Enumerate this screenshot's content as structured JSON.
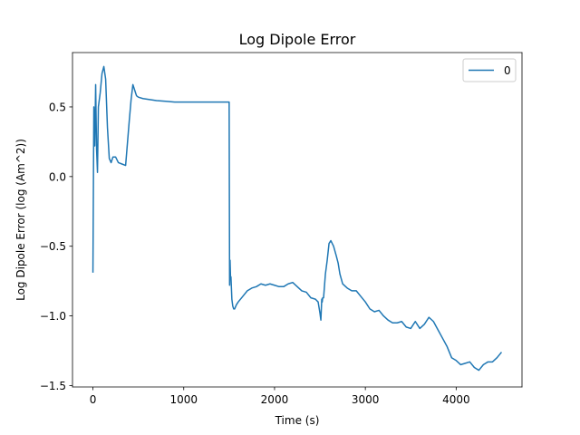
{
  "chart_data": {
    "type": "line",
    "title": "Log Dipole Error",
    "xlabel": "Time (s)",
    "ylabel": "Log Dipole Error (log (Am^2))",
    "xlim": [
      -225,
      4725
    ],
    "ylim": [
      -1.51,
      0.89
    ],
    "xticks": [
      0,
      1000,
      2000,
      3000,
      4000
    ],
    "xtick_labels": [
      "0",
      "1000",
      "2000",
      "3000",
      "4000"
    ],
    "yticks": [
      -1.5,
      -1.0,
      -0.5,
      0.0,
      0.5
    ],
    "ytick_labels": [
      "−1.5",
      "−1.0",
      "−0.5",
      "0.0",
      "0.5"
    ],
    "grid": false,
    "legend_position": "top-right",
    "series": [
      {
        "name": "0",
        "color": "#1f77b4",
        "x": [
          0,
          10,
          20,
          30,
          40,
          50,
          60,
          70,
          80,
          100,
          120,
          140,
          160,
          180,
          200,
          220,
          250,
          280,
          320,
          360,
          400,
          420,
          440,
          460,
          470,
          480,
          500,
          550,
          600,
          700,
          800,
          900,
          1000,
          1100,
          1200,
          1300,
          1400,
          1480,
          1500,
          1505,
          1510,
          1515,
          1520,
          1530,
          1540,
          1550,
          1560,
          1580,
          1600,
          1650,
          1700,
          1750,
          1800,
          1850,
          1900,
          1950,
          2000,
          2050,
          2100,
          2150,
          2200,
          2250,
          2300,
          2350,
          2400,
          2450,
          2480,
          2500,
          2510,
          2520,
          2525,
          2530,
          2540,
          2560,
          2580,
          2600,
          2620,
          2650,
          2680,
          2700,
          2720,
          2750,
          2800,
          2850,
          2900,
          2950,
          3000,
          3050,
          3100,
          3150,
          3200,
          3250,
          3300,
          3350,
          3400,
          3450,
          3500,
          3550,
          3600,
          3650,
          3700,
          3750,
          3800,
          3850,
          3900,
          3950,
          4000,
          4050,
          4100,
          4150,
          4200,
          4250,
          4300,
          4350,
          4400,
          4450,
          4500
        ],
        "y": [
          -0.69,
          0.5,
          0.22,
          0.66,
          0.2,
          0.03,
          0.5,
          0.55,
          0.6,
          0.74,
          0.79,
          0.7,
          0.35,
          0.13,
          0.1,
          0.14,
          0.14,
          0.1,
          0.09,
          0.08,
          0.4,
          0.55,
          0.66,
          0.62,
          0.6,
          0.58,
          0.57,
          0.56,
          0.555,
          0.545,
          0.54,
          0.535,
          0.535,
          0.535,
          0.535,
          0.535,
          0.535,
          0.535,
          0.535,
          -0.78,
          -0.6,
          -0.72,
          -0.72,
          -0.88,
          -0.93,
          -0.95,
          -0.95,
          -0.92,
          -0.9,
          -0.86,
          -0.82,
          -0.8,
          -0.79,
          -0.77,
          -0.78,
          -0.77,
          -0.78,
          -0.79,
          -0.79,
          -0.77,
          -0.76,
          -0.79,
          -0.82,
          -0.83,
          -0.87,
          -0.88,
          -0.9,
          -0.98,
          -1.03,
          -0.88,
          -0.9,
          -0.87,
          -0.87,
          -0.7,
          -0.6,
          -0.48,
          -0.46,
          -0.5,
          -0.57,
          -0.62,
          -0.7,
          -0.77,
          -0.8,
          -0.82,
          -0.82,
          -0.86,
          -0.9,
          -0.95,
          -0.97,
          -0.96,
          -1.0,
          -1.03,
          -1.05,
          -1.05,
          -1.04,
          -1.08,
          -1.09,
          -1.04,
          -1.09,
          -1.06,
          -1.01,
          -1.04,
          -1.1,
          -1.16,
          -1.22,
          -1.3,
          -1.32,
          -1.35,
          -1.34,
          -1.33,
          -1.37,
          -1.39,
          -1.35,
          -1.33,
          -1.33,
          -1.3,
          -1.26
        ]
      }
    ]
  }
}
